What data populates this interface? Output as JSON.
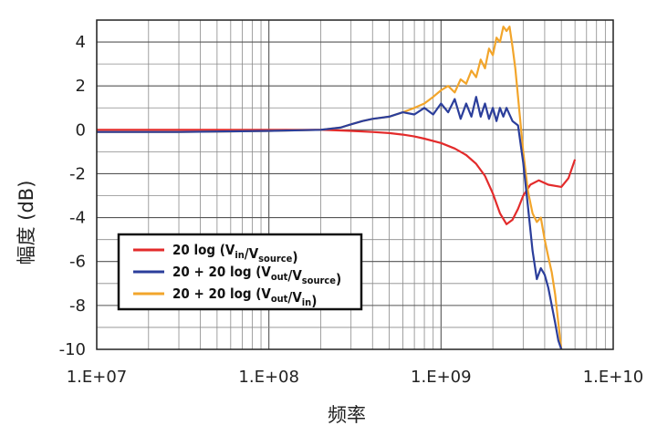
{
  "chart_data": {
    "type": "line",
    "title": "",
    "xlabel": "频率",
    "ylabel": "幅度 (dB)",
    "x_scale": "log",
    "xlim": [
      10000000,
      10000000000
    ],
    "ylim": [
      -10,
      5
    ],
    "x_ticks": [
      "1.E+07",
      "1.E+08",
      "1.E+09",
      "1.E+10"
    ],
    "y_ticks": [
      "4",
      "2",
      "0",
      "-2",
      "-4",
      "-6",
      "-8",
      "-10"
    ],
    "grid": true,
    "legend_position": "lower-left",
    "series": [
      {
        "name": "20 log (V_in/V_source)",
        "label_parts": {
          "pre": "20 log (V",
          "sub1": "in",
          "mid": "/V",
          "sub2": "source",
          "post": ")"
        },
        "color": "#e32b2b",
        "x": [
          10000000,
          30000000,
          100000000,
          200000000,
          300000000,
          400000000,
          500000000,
          600000000,
          700000000,
          800000000,
          1000000000,
          1200000000,
          1400000000,
          1600000000,
          1800000000,
          2000000000,
          2200000000,
          2400000000,
          2600000000,
          2800000000,
          3000000000,
          3300000000,
          3700000000,
          4200000000,
          5000000000,
          5500000000,
          6000000000
        ],
        "y": [
          0.0,
          0.0,
          0.0,
          0.0,
          -0.05,
          -0.1,
          -0.15,
          -0.22,
          -0.3,
          -0.4,
          -0.6,
          -0.85,
          -1.15,
          -1.55,
          -2.1,
          -2.9,
          -3.8,
          -4.3,
          -4.1,
          -3.6,
          -3.0,
          -2.5,
          -2.3,
          -2.5,
          -2.6,
          -2.2,
          -1.35
        ]
      },
      {
        "name": "20 + 20 log (V_out/V_source)",
        "label_parts": {
          "pre": "20 + 20 log (V",
          "sub1": "out",
          "mid": "/V",
          "sub2": "source",
          "post": ")"
        },
        "color": "#2b3e9b",
        "x": [
          10000000,
          30000000,
          100000000,
          200000000,
          260000000,
          300000000,
          350000000,
          400000000,
          500000000,
          600000000,
          700000000,
          800000000,
          900000000,
          1000000000,
          1100000000,
          1200000000,
          1300000000,
          1400000000,
          1500000000,
          1600000000,
          1700000000,
          1800000000,
          1900000000,
          2000000000,
          2100000000,
          2200000000,
          2300000000,
          2400000000,
          2600000000,
          2800000000,
          3000000000,
          3200000000,
          3400000000,
          3600000000,
          3800000000,
          4000000000,
          4200000000,
          4400000000,
          4600000000,
          4800000000,
          5000000000
        ],
        "y": [
          -0.1,
          -0.1,
          -0.05,
          0.0,
          0.1,
          0.25,
          0.4,
          0.5,
          0.6,
          0.8,
          0.7,
          1.0,
          0.7,
          1.2,
          0.8,
          1.4,
          0.5,
          1.2,
          0.6,
          1.5,
          0.6,
          1.2,
          0.5,
          1.0,
          0.4,
          1.0,
          0.6,
          1.0,
          0.4,
          0.2,
          -1.5,
          -3.5,
          -5.5,
          -6.8,
          -6.3,
          -6.6,
          -7.2,
          -8.0,
          -8.8,
          -9.6,
          -10.0
        ]
      },
      {
        "name": "20 + 20 log (V_out/V_in)",
        "label_parts": {
          "pre": "20 + 20 log (V",
          "sub1": "out",
          "mid": "/V",
          "sub2": "in",
          "post": ")"
        },
        "color": "#f2a52b",
        "x": [
          10000000,
          30000000,
          100000000,
          200000000,
          260000000,
          300000000,
          350000000,
          400000000,
          500000000,
          600000000,
          700000000,
          800000000,
          900000000,
          1000000000,
          1100000000,
          1200000000,
          1300000000,
          1400000000,
          1500000000,
          1600000000,
          1700000000,
          1800000000,
          1900000000,
          2000000000,
          2100000000,
          2200000000,
          2300000000,
          2400000000,
          2500000000,
          2600000000,
          2700000000,
          2800000000,
          3000000000,
          3200000000,
          3400000000,
          3600000000,
          3800000000,
          4000000000,
          4200000000,
          4400000000,
          4600000000,
          4800000000,
          5000000000
        ],
        "y": [
          -0.1,
          -0.1,
          -0.05,
          0.0,
          0.1,
          0.25,
          0.4,
          0.5,
          0.6,
          0.8,
          1.0,
          1.2,
          1.5,
          1.8,
          2.0,
          1.7,
          2.3,
          2.1,
          2.7,
          2.4,
          3.2,
          2.8,
          3.7,
          3.4,
          4.2,
          4.0,
          4.7,
          4.5,
          4.7,
          3.8,
          2.8,
          1.5,
          -1.0,
          -2.8,
          -3.8,
          -4.2,
          -4.0,
          -5.0,
          -5.8,
          -6.5,
          -7.5,
          -8.8,
          -10.0
        ]
      }
    ]
  }
}
